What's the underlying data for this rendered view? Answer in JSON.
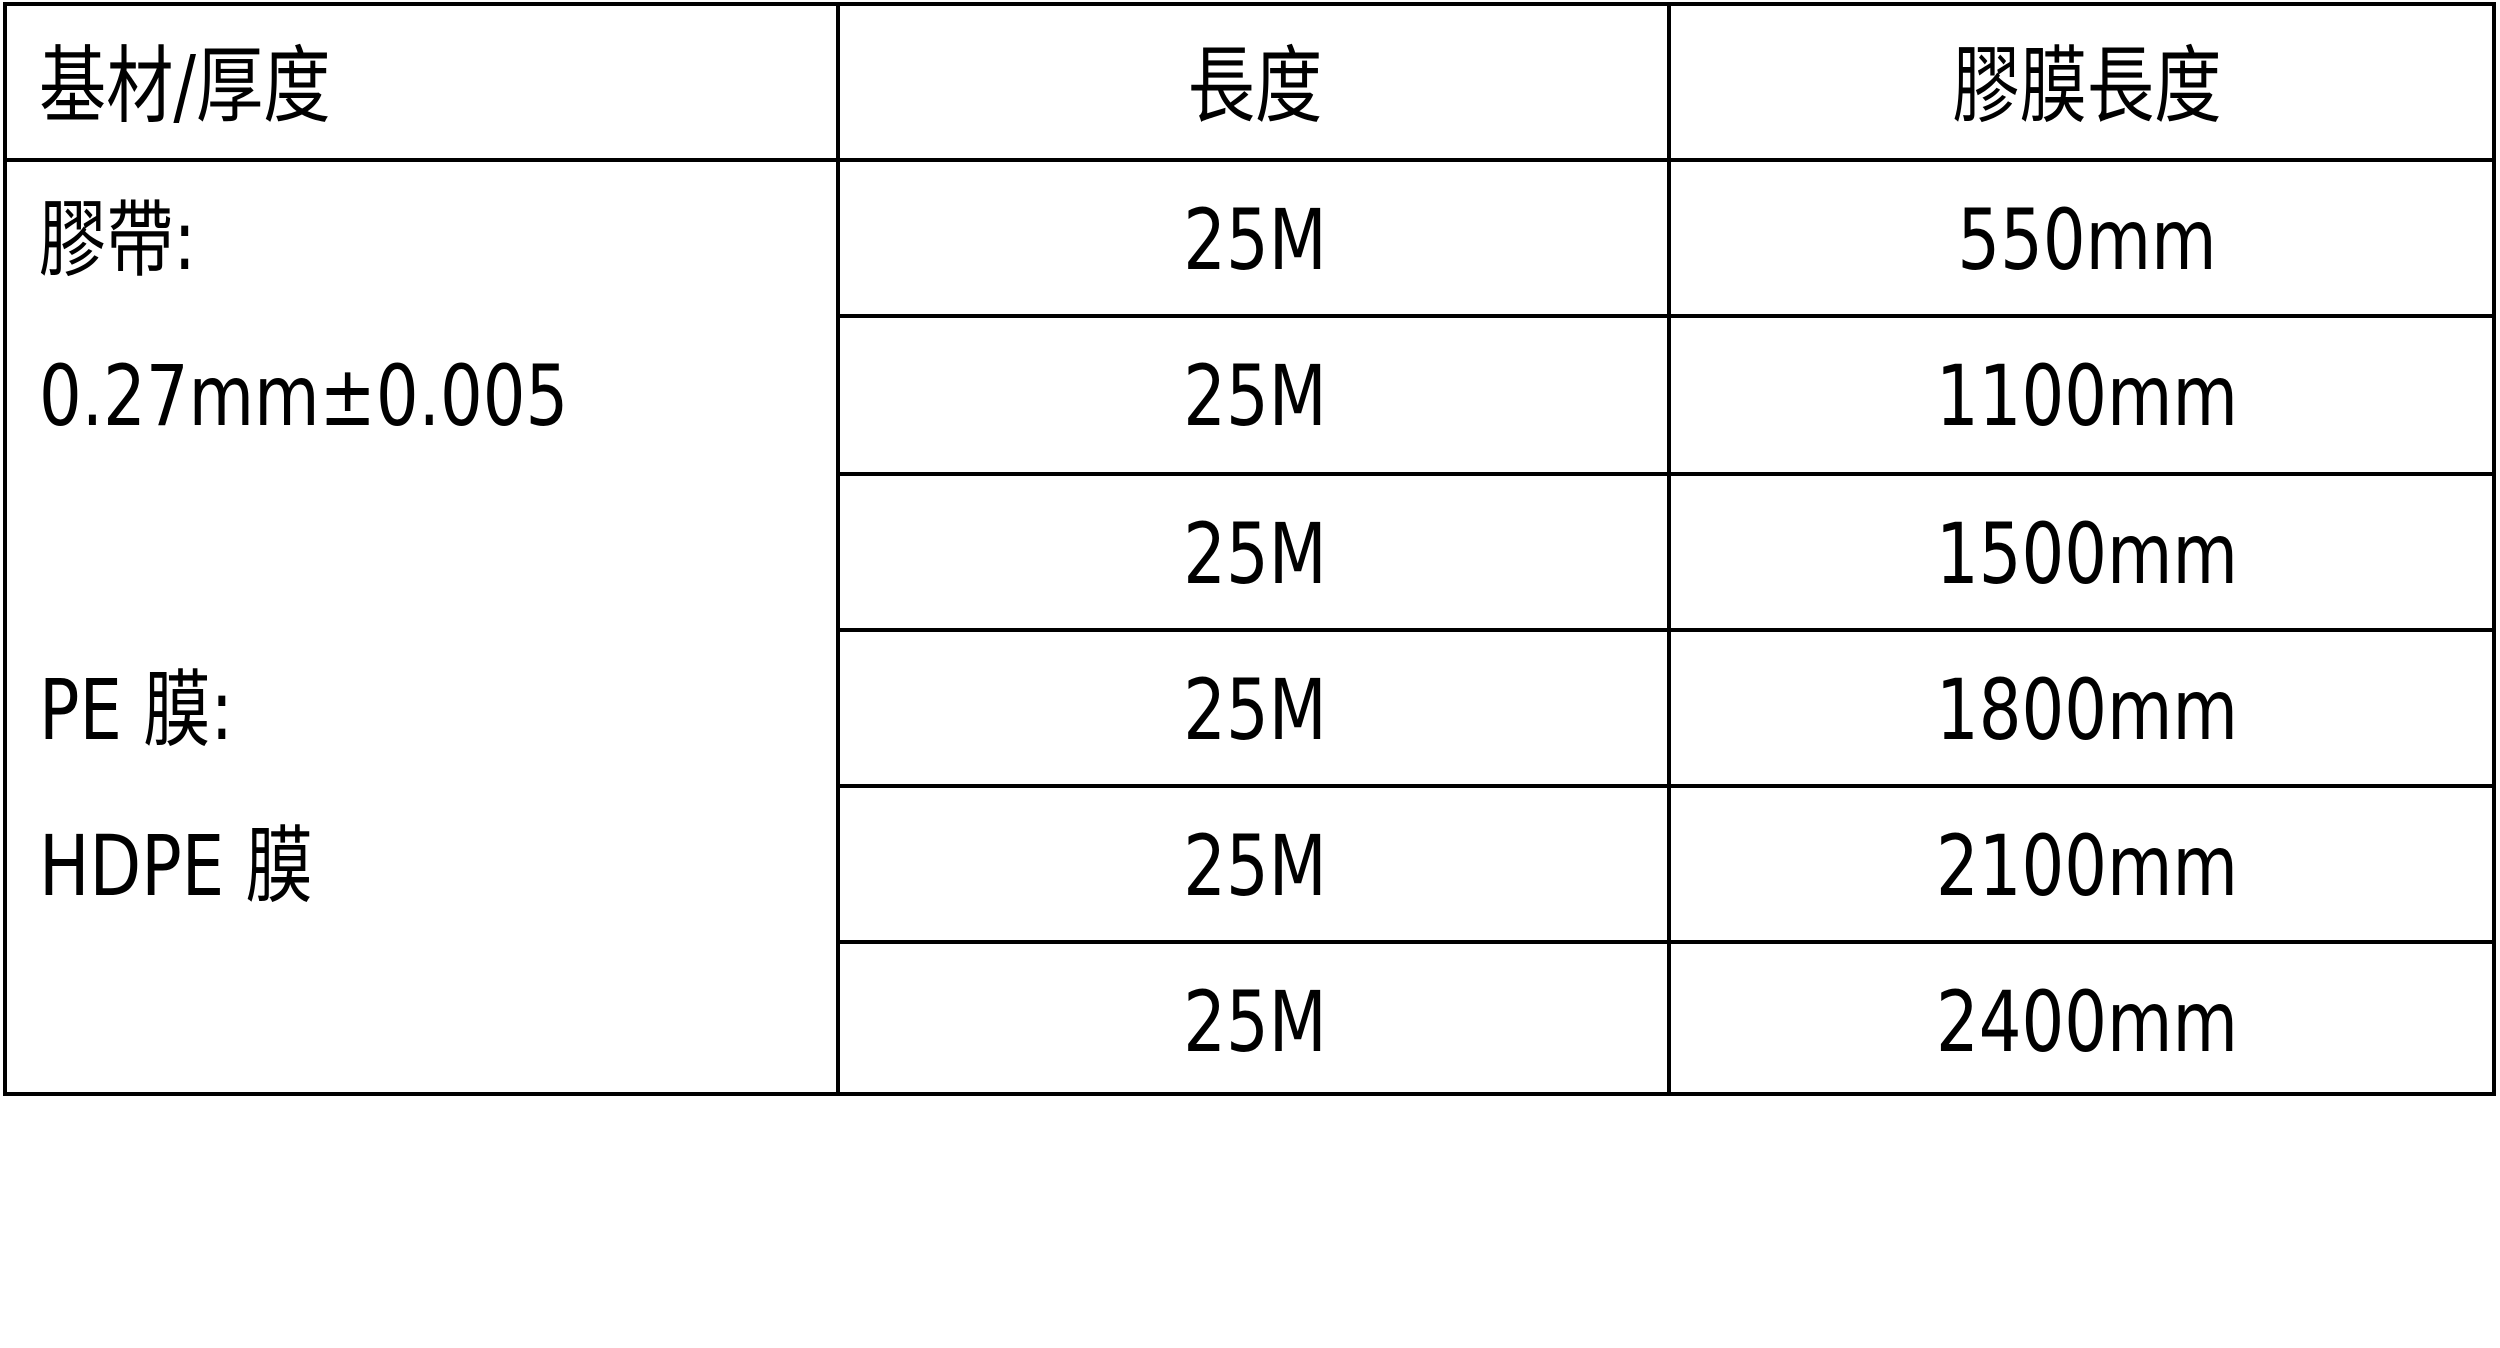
{
  "header": {
    "col1": "基材/厚度",
    "col2": "長度",
    "col3": "膠膜長度"
  },
  "material": {
    "tape_label": "膠帶:",
    "tape_thickness": "0.27mm±0.005",
    "pe_label": "PE 膜:",
    "hdpe_label": "HDPE 膜"
  },
  "rows": [
    {
      "length": "25M",
      "film_length": "550mm"
    },
    {
      "length": "25M",
      "film_length": "1100mm"
    },
    {
      "length": "25M",
      "film_length": "1500mm"
    },
    {
      "length": "25M",
      "film_length": "1800mm"
    },
    {
      "length": "25M",
      "film_length": "2100mm"
    },
    {
      "length": "25M",
      "film_length": "2400mm"
    }
  ]
}
